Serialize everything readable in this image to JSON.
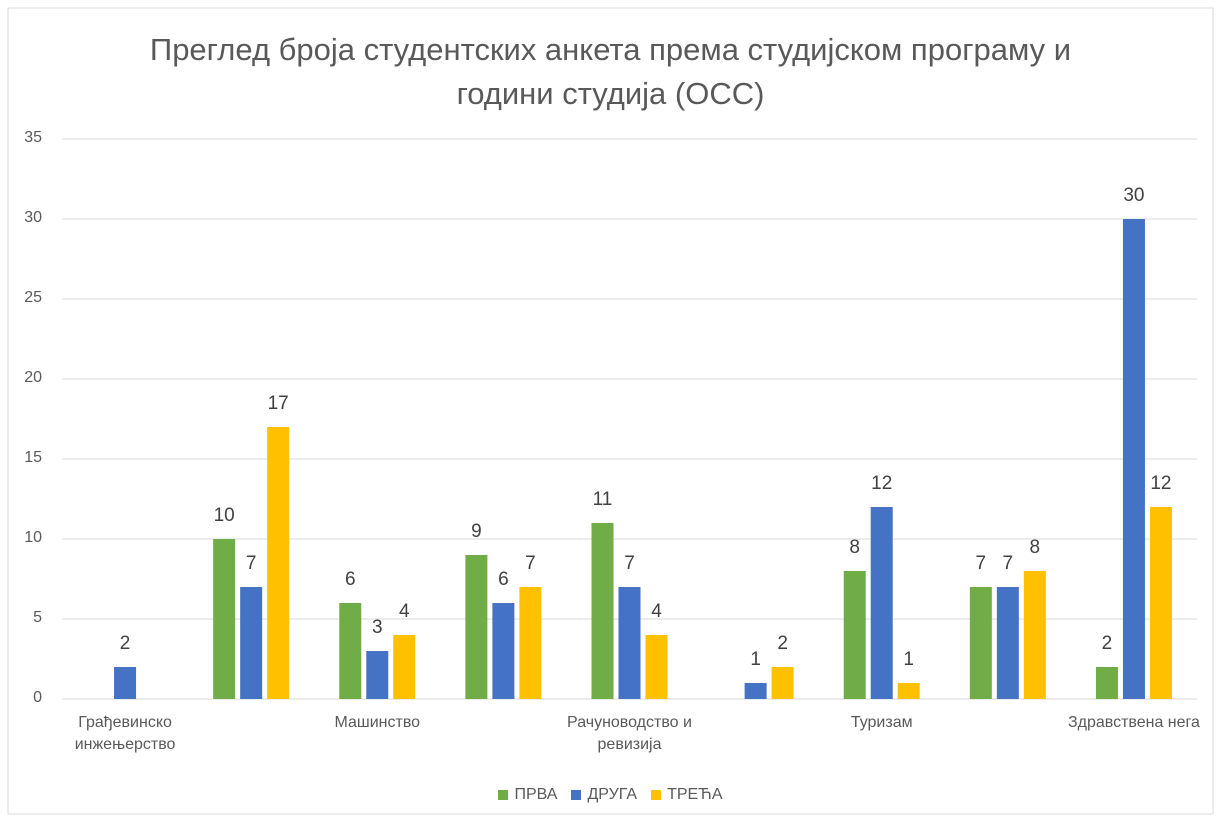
{
  "chart_data": {
    "type": "bar",
    "title": "Преглед броја студентских анкета према студијском програму и години студија (ОСС)",
    "categories": [
      "Грађевинско инжењерство",
      null,
      "Машинство",
      null,
      "Рачуноводство и ревизија",
      null,
      "Туризам",
      null,
      "Здравствена нега"
    ],
    "series": [
      {
        "name": "ПРВА",
        "color": "#70ad47",
        "values": [
          null,
          10,
          6,
          9,
          11,
          null,
          8,
          7,
          2
        ]
      },
      {
        "name": "ДРУГА",
        "color": "#4472c4",
        "values": [
          2,
          7,
          3,
          6,
          7,
          1,
          12,
          7,
          30
        ]
      },
      {
        "name": "ТРЕЋА",
        "color": "#ffc000",
        "values": [
          null,
          17,
          4,
          7,
          4,
          2,
          1,
          8,
          12
        ]
      }
    ],
    "ylim": [
      0,
      35
    ],
    "yticks": [
      0,
      5,
      10,
      15,
      20,
      25,
      30,
      35
    ],
    "grid": true,
    "legend": "bottom"
  }
}
